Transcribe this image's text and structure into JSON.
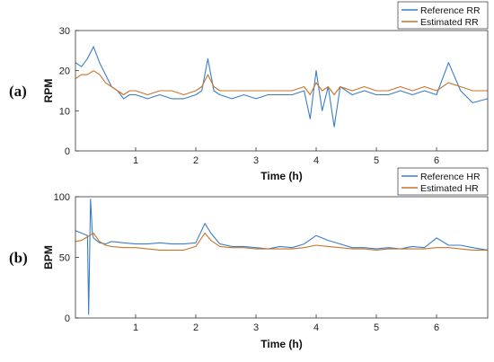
{
  "chart_data": [
    {
      "type": "line",
      "panel_label": "(a)",
      "xlabel": "Time (h)",
      "ylabel": "RPM",
      "xlim": [
        0,
        6.85
      ],
      "ylim": [
        0,
        30
      ],
      "xticks": [
        1,
        2,
        3,
        4,
        5,
        6
      ],
      "yticks": [
        0,
        10,
        20,
        30
      ],
      "grid": false,
      "legend_position": "top-right",
      "series": [
        {
          "name": "Reference RR",
          "color": "#3a7ec8",
          "x": [
            0.0,
            0.1,
            0.2,
            0.3,
            0.4,
            0.5,
            0.6,
            0.7,
            0.8,
            0.9,
            1.0,
            1.2,
            1.4,
            1.6,
            1.8,
            2.0,
            2.1,
            2.2,
            2.3,
            2.4,
            2.6,
            2.8,
            3.0,
            3.2,
            3.4,
            3.6,
            3.8,
            3.9,
            4.0,
            4.1,
            4.2,
            4.3,
            4.4,
            4.6,
            4.8,
            5.0,
            5.2,
            5.4,
            5.6,
            5.8,
            6.0,
            6.2,
            6.4,
            6.6,
            6.85
          ],
          "y": [
            22,
            21,
            23,
            26,
            22,
            19,
            16,
            15,
            13,
            14,
            14,
            13,
            14,
            13,
            13,
            14,
            15,
            23,
            15,
            14,
            13,
            14,
            13,
            14,
            14,
            14,
            15,
            8,
            20,
            10,
            16,
            6,
            16,
            14,
            15,
            14,
            14,
            15,
            14,
            15,
            14,
            22,
            15,
            12,
            13
          ]
        },
        {
          "name": "Estimated RR",
          "color": "#c8742a",
          "x": [
            0.0,
            0.1,
            0.2,
            0.3,
            0.4,
            0.5,
            0.6,
            0.7,
            0.8,
            0.9,
            1.0,
            1.2,
            1.4,
            1.6,
            1.8,
            2.0,
            2.1,
            2.2,
            2.3,
            2.4,
            2.6,
            2.8,
            3.0,
            3.2,
            3.4,
            3.6,
            3.8,
            3.9,
            4.0,
            4.1,
            4.2,
            4.3,
            4.4,
            4.6,
            4.8,
            5.0,
            5.2,
            5.4,
            5.6,
            5.8,
            6.0,
            6.2,
            6.4,
            6.6,
            6.85
          ],
          "y": [
            18,
            19,
            19,
            20,
            19,
            17,
            16,
            15,
            14,
            15,
            15,
            14,
            15,
            15,
            14,
            15,
            16,
            19,
            16,
            15,
            15,
            15,
            15,
            15,
            15,
            15,
            16,
            14,
            17,
            15,
            16,
            14,
            16,
            15,
            16,
            15,
            15,
            16,
            15,
            16,
            15,
            17,
            16,
            15,
            15
          ]
        }
      ]
    },
    {
      "type": "line",
      "panel_label": "(b)",
      "xlabel": "Time (h)",
      "ylabel": "BPM",
      "xlim": [
        0,
        6.85
      ],
      "ylim": [
        0,
        100
      ],
      "xticks": [
        1,
        2,
        3,
        4,
        5,
        6
      ],
      "yticks": [
        0,
        50,
        100
      ],
      "grid": false,
      "legend_position": "top-right",
      "series": [
        {
          "name": "Reference HR",
          "color": "#3a7ec8",
          "x": [
            0.0,
            0.1,
            0.2,
            0.22,
            0.25,
            0.28,
            0.3,
            0.4,
            0.5,
            0.6,
            0.8,
            1.0,
            1.2,
            1.4,
            1.6,
            1.8,
            2.0,
            2.15,
            2.25,
            2.4,
            2.6,
            2.8,
            3.0,
            3.2,
            3.4,
            3.6,
            3.8,
            4.0,
            4.2,
            4.4,
            4.6,
            4.8,
            5.0,
            5.2,
            5.4,
            5.6,
            5.8,
            6.0,
            6.2,
            6.4,
            6.6,
            6.85
          ],
          "y": [
            72,
            70,
            68,
            3,
            98,
            70,
            66,
            62,
            61,
            63,
            62,
            61,
            61,
            62,
            61,
            61,
            62,
            78,
            70,
            61,
            59,
            59,
            58,
            57,
            59,
            58,
            61,
            68,
            64,
            61,
            58,
            58,
            57,
            58,
            57,
            59,
            58,
            66,
            60,
            60,
            58,
            56
          ]
        },
        {
          "name": "Estimated HR",
          "color": "#c8742a",
          "x": [
            0.0,
            0.1,
            0.2,
            0.3,
            0.4,
            0.5,
            0.6,
            0.8,
            1.0,
            1.2,
            1.4,
            1.6,
            1.8,
            2.0,
            2.15,
            2.25,
            2.4,
            2.6,
            2.8,
            3.0,
            3.2,
            3.4,
            3.6,
            3.8,
            4.0,
            4.2,
            4.4,
            4.6,
            4.8,
            5.0,
            5.2,
            5.4,
            5.6,
            5.8,
            6.0,
            6.2,
            6.4,
            6.6,
            6.85
          ],
          "y": [
            63,
            64,
            67,
            70,
            63,
            60,
            59,
            58,
            58,
            57,
            56,
            56,
            56,
            59,
            70,
            64,
            59,
            58,
            58,
            57,
            57,
            57,
            57,
            58,
            60,
            59,
            58,
            57,
            57,
            56,
            57,
            57,
            57,
            57,
            58,
            58,
            57,
            56,
            56
          ]
        }
      ]
    }
  ]
}
